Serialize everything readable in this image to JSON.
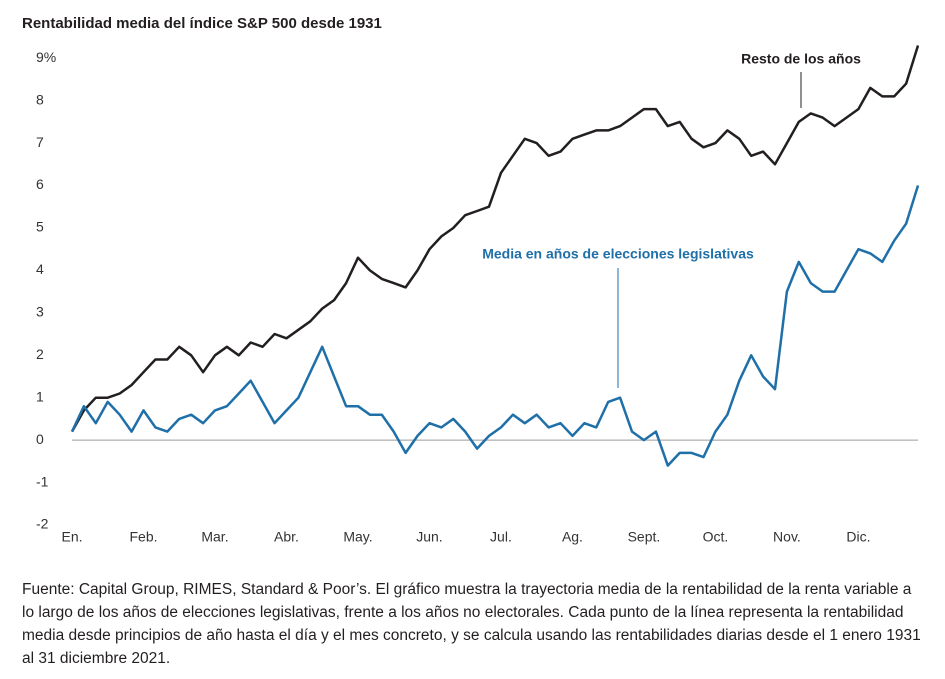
{
  "chart_data": {
    "type": "line",
    "title": "Rentabilidad media del índice S&P 500 desde 1931",
    "categories": [
      "En.",
      null,
      null,
      null,
      null,
      null,
      "Feb.",
      null,
      null,
      null,
      null,
      null,
      "Mar.",
      null,
      null,
      null,
      null,
      null,
      "Abr.",
      null,
      null,
      null,
      null,
      null,
      "May.",
      null,
      null,
      null,
      null,
      null,
      "Jun.",
      null,
      null,
      null,
      null,
      null,
      "Jul.",
      null,
      null,
      null,
      null,
      null,
      "Ag.",
      null,
      null,
      null,
      null,
      null,
      "Sept.",
      null,
      null,
      null,
      null,
      null,
      "Oct.",
      null,
      null,
      null,
      null,
      null,
      "Nov.",
      null,
      null,
      null,
      null,
      null,
      "Dic.",
      null,
      null,
      null,
      null,
      null
    ],
    "series": [
      {
        "name": "Resto de los años",
        "color": "#231f20",
        "values": [
          0.2,
          0.7,
          1.0,
          1.0,
          1.1,
          1.3,
          1.6,
          1.9,
          1.9,
          2.2,
          2.0,
          1.6,
          2.0,
          2.2,
          2.0,
          2.3,
          2.2,
          2.5,
          2.4,
          2.6,
          2.8,
          3.1,
          3.3,
          3.7,
          4.3,
          4.0,
          3.8,
          3.7,
          3.6,
          4.0,
          4.5,
          4.8,
          5.0,
          5.3,
          5.4,
          5.5,
          6.3,
          6.7,
          7.1,
          7.0,
          6.7,
          6.8,
          7.1,
          7.2,
          7.3,
          7.3,
          7.4,
          7.6,
          7.8,
          7.8,
          7.4,
          7.5,
          7.1,
          6.9,
          7.0,
          7.3,
          7.1,
          6.7,
          6.8,
          6.5,
          7.0,
          7.5,
          7.7,
          7.6,
          7.4,
          7.6,
          7.8,
          8.3,
          8.1,
          8.1,
          8.4,
          9.3
        ]
      },
      {
        "name": "Media en años de elecciones legislativas",
        "color": "#1f6fa8",
        "values": [
          0.2,
          0.8,
          0.4,
          0.9,
          0.6,
          0.2,
          0.7,
          0.3,
          0.2,
          0.5,
          0.6,
          0.4,
          0.7,
          0.8,
          1.1,
          1.4,
          0.9,
          0.4,
          0.7,
          1.0,
          1.6,
          2.2,
          1.5,
          0.8,
          0.8,
          0.6,
          0.6,
          0.2,
          -0.3,
          0.1,
          0.4,
          0.3,
          0.5,
          0.2,
          -0.2,
          0.1,
          0.3,
          0.6,
          0.4,
          0.6,
          0.3,
          0.4,
          0.1,
          0.4,
          0.3,
          0.9,
          1.0,
          0.2,
          0.0,
          0.2,
          -0.6,
          -0.3,
          -0.3,
          -0.4,
          0.2,
          0.6,
          1.4,
          2.0,
          1.5,
          1.2,
          3.5,
          4.2,
          3.7,
          3.5,
          3.5,
          4.0,
          4.5,
          4.4,
          4.2,
          4.7,
          5.1,
          6.0
        ]
      }
    ],
    "ylim": [
      -2,
      9.5
    ],
    "yticks": [
      -2,
      -1,
      0,
      1,
      2,
      3,
      4,
      5,
      6,
      7,
      8,
      {
        "value": 9,
        "label": "9%"
      }
    ],
    "note": "Fuente: Capital Group, RIMES, Standard & Poor’s. El gráfico muestra la trayectoria media de la rentabilidad de la renta variable a lo largo de los años de elecciones legislativas, frente a los años no electorales. Cada punto de la línea representa la rentabilidad media desde principios de año hasta el día y el mes concreto, y se calcula usando las rentabilidades diarias desde el 1 enero 1931 al 31 diciembre 2021."
  }
}
